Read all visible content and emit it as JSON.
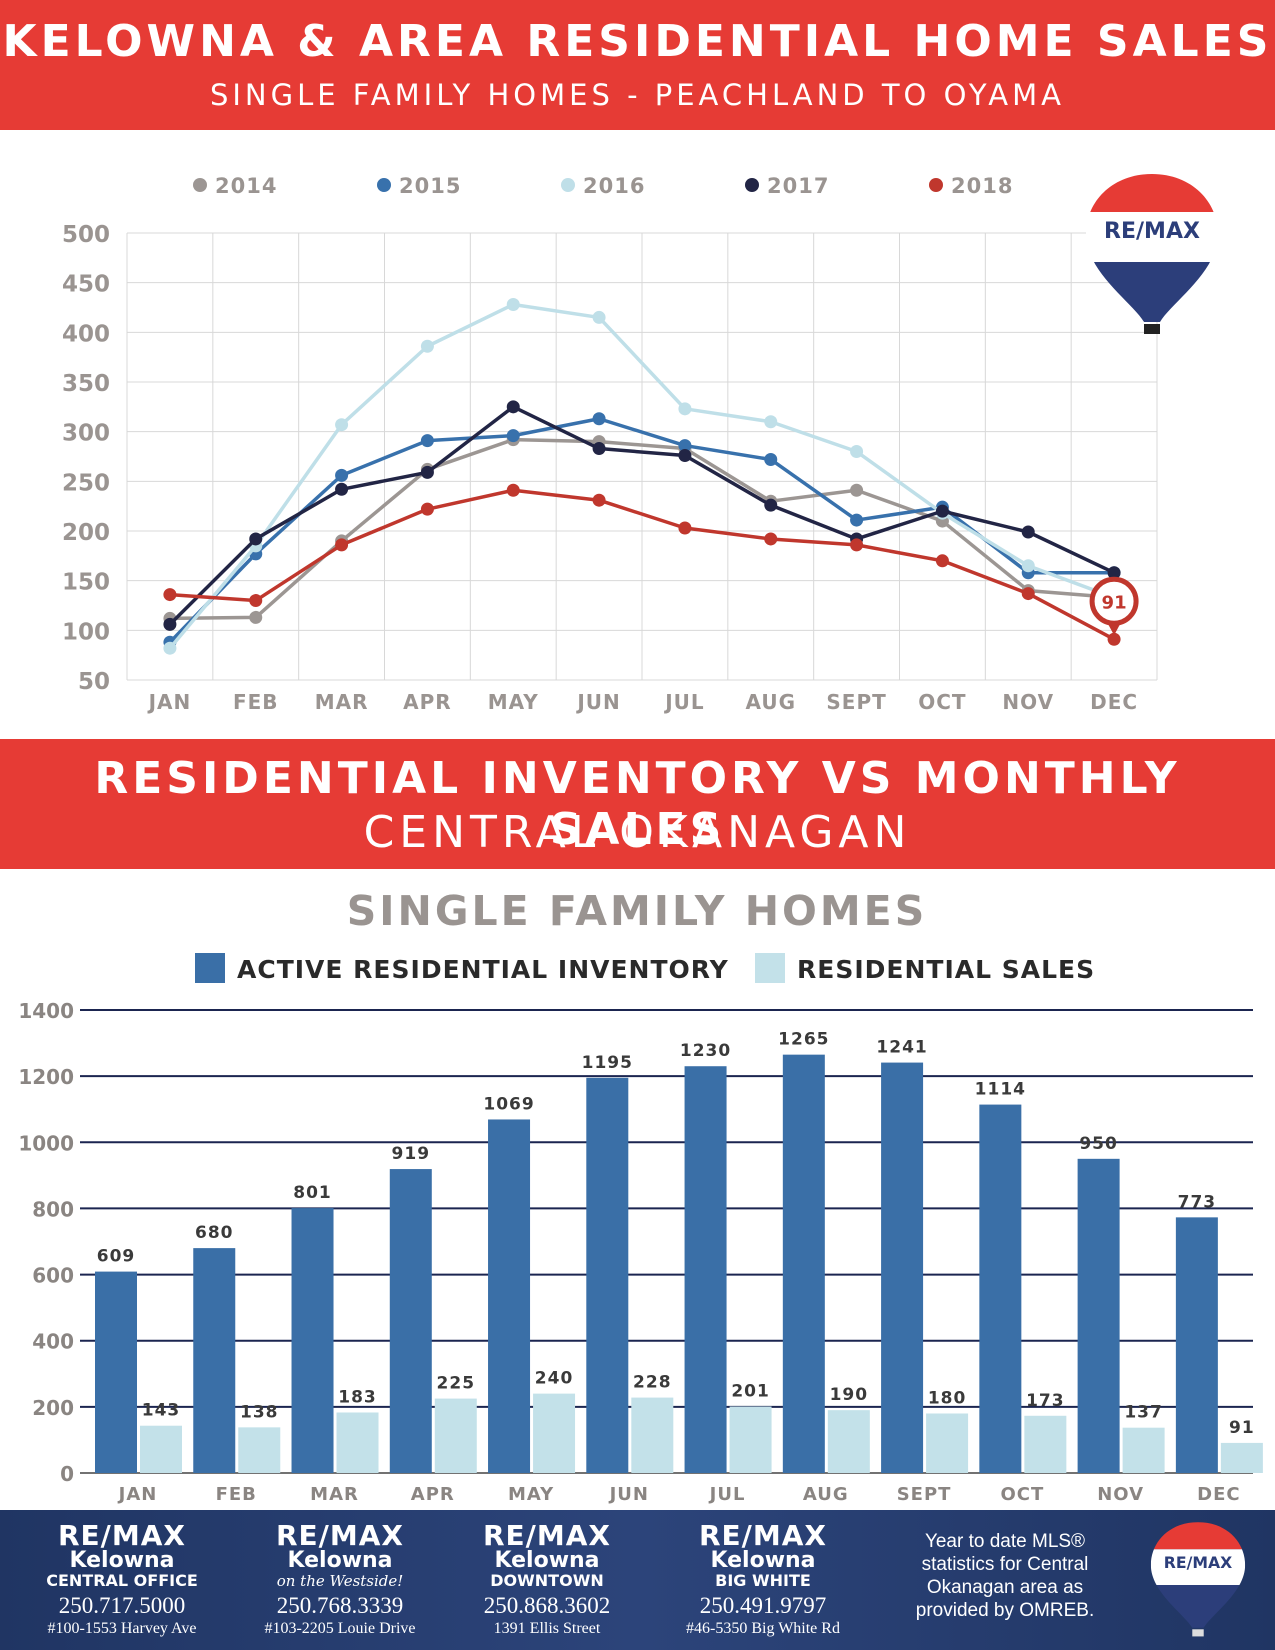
{
  "header": {
    "title": "KELOWNA & AREA RESIDENTIAL HOME SALES",
    "subtitle": "SINGLE FAMILY HOMES - PEACHLAND TO OYAMA"
  },
  "section2": {
    "title": "RESIDENTIAL INVENTORY VS MONTHLY SALES",
    "subtitle": "CENTRAL OKANAGAN"
  },
  "logo_text": "RE/MAX",
  "chart_data": [
    {
      "type": "line",
      "categories": [
        "JAN",
        "FEB",
        "MAR",
        "APR",
        "MAY",
        "JUN",
        "JUL",
        "AUG",
        "SEPT",
        "OCT",
        "NOV",
        "DEC"
      ],
      "ylim": [
        50,
        500
      ],
      "yticks": [
        50,
        100,
        150,
        200,
        250,
        300,
        350,
        400,
        450,
        500
      ],
      "grid": true,
      "legend_position": "top",
      "series": [
        {
          "name": "2014",
          "color": "#9c9693",
          "values": [
            112,
            113,
            190,
            262,
            292,
            290,
            283,
            230,
            241,
            210,
            140,
            133
          ]
        },
        {
          "name": "2015",
          "color": "#3871ac",
          "values": [
            88,
            177,
            256,
            291,
            296,
            313,
            286,
            272,
            211,
            224,
            158,
            158
          ]
        },
        {
          "name": "2016",
          "color": "#bfdfe8",
          "values": [
            82,
            185,
            307,
            386,
            428,
            415,
            323,
            310,
            280,
            218,
            165,
            133
          ]
        },
        {
          "name": "2017",
          "color": "#222545",
          "values": [
            106,
            192,
            242,
            259,
            325,
            283,
            276,
            226,
            192,
            220,
            199,
            158
          ]
        },
        {
          "name": "2018",
          "color": "#c0372d",
          "values": [
            136,
            130,
            186,
            222,
            241,
            231,
            203,
            192,
            186,
            170,
            137,
            91
          ]
        }
      ],
      "annotation": "91"
    },
    {
      "type": "bar",
      "title": "SINGLE FAMILY HOMES",
      "categories": [
        "JAN",
        "FEB",
        "MAR",
        "APR",
        "MAY",
        "JUN",
        "JUL",
        "AUG",
        "SEPT",
        "OCT",
        "NOV",
        "DEC"
      ],
      "ylim": [
        0,
        1400
      ],
      "yticks": [
        0,
        200,
        400,
        600,
        800,
        1000,
        1200,
        1400
      ],
      "grid": true,
      "legend_position": "top",
      "series": [
        {
          "name": "ACTIVE RESIDENTIAL INVENTORY",
          "color": "#3a6fa7",
          "values": [
            609,
            680,
            801,
            919,
            1069,
            1195,
            1230,
            1265,
            1241,
            1114,
            950,
            773
          ]
        },
        {
          "name": "RESIDENTIAL SALES",
          "color": "#c3e1e9",
          "values": [
            143,
            138,
            183,
            225,
            240,
            228,
            201,
            190,
            180,
            173,
            137,
            91
          ]
        }
      ]
    }
  ],
  "footer": {
    "offices": [
      {
        "brand": "RE/MAX",
        "city": "Kelowna",
        "sub": "CENTRAL OFFICE",
        "phone": "250.717.5000",
        "address": "#100-1553 Harvey Ave"
      },
      {
        "brand": "RE/MAX",
        "city": "Kelowna",
        "sub": "on the Westside!",
        "phone": "250.768.3339",
        "address": "#103-2205 Louie Drive"
      },
      {
        "brand": "RE/MAX",
        "city": "Kelowna",
        "sub": "DOWNTOWN",
        "phone": "250.868.3602",
        "address": "1391 Ellis Street"
      },
      {
        "brand": "RE/MAX",
        "city": "Kelowna",
        "sub": "BIG WHITE",
        "phone": "250.491.9797",
        "address": "#46-5350 Big White Rd"
      }
    ],
    "note": "Year to date MLS® statistics for Central Okanagan area as provided by OMREB."
  }
}
